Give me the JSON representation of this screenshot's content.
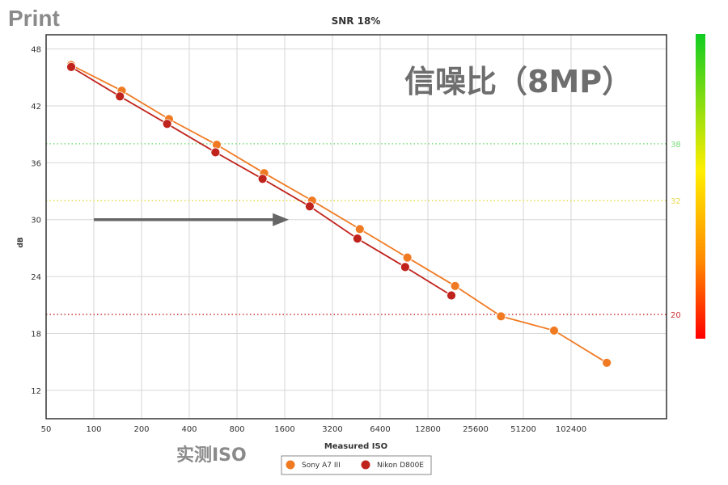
{
  "header": {
    "label": "Print"
  },
  "overlay": {
    "title_cn": "信噪比（8MP）",
    "xlabel_cn": "实测ISO"
  },
  "colors": {
    "sony": "#f07a22",
    "nikon": "#c0231c",
    "arrow": "#666666",
    "thr_38": "#7be07b",
    "thr_32": "#e8d84a",
    "thr_20": "#cc3333"
  },
  "chart_data": {
    "type": "line",
    "title": "SNR 18%",
    "xlabel": "Measured ISO",
    "ylabel": "dB",
    "x_scale": "log2",
    "x_ticks": [
      50,
      100,
      200,
      400,
      800,
      1600,
      3200,
      6400,
      12800,
      25600,
      51200,
      102400
    ],
    "xlim": [
      50,
      409600
    ],
    "y_ticks": [
      12,
      18,
      24,
      30,
      36,
      42,
      48
    ],
    "ylim": [
      9,
      49.5
    ],
    "grid": true,
    "legend_position": "bottom-center",
    "series": [
      {
        "name": "Sony A7 III",
        "points": [
          [
            72,
            46.3
          ],
          [
            150,
            43.6
          ],
          [
            298,
            40.6
          ],
          [
            596,
            37.9
          ],
          [
            1187,
            34.9
          ],
          [
            2380,
            32.0
          ],
          [
            4760,
            29.0
          ],
          [
            9500,
            26.0
          ],
          [
            19000,
            23.0
          ],
          [
            37000,
            19.8
          ],
          [
            80000,
            18.3
          ],
          [
            172000,
            14.9
          ]
        ]
      },
      {
        "name": "Nikon D800E",
        "points": [
          [
            72,
            46.1
          ],
          [
            146,
            43.0
          ],
          [
            290,
            40.1
          ],
          [
            585,
            37.1
          ],
          [
            1160,
            34.3
          ],
          [
            2300,
            31.4
          ],
          [
            4600,
            28.0
          ],
          [
            9200,
            25.0
          ],
          [
            18000,
            22.0
          ]
        ]
      }
    ],
    "threshold_lines": [
      {
        "value": 38,
        "label": "38"
      },
      {
        "value": 32,
        "label": "32"
      },
      {
        "value": 20,
        "label": "20"
      }
    ],
    "annotations": [
      {
        "type": "arrow",
        "from": [
          100,
          30
        ],
        "to": [
          1700,
          30
        ]
      }
    ]
  }
}
